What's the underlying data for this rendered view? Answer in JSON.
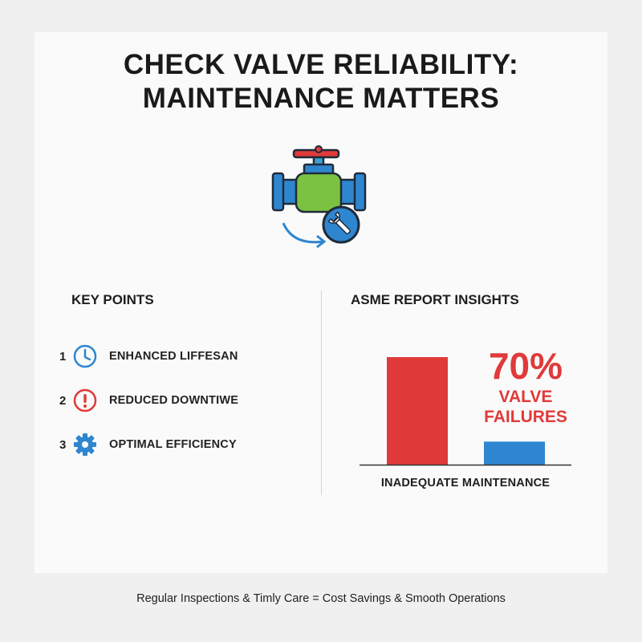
{
  "title": {
    "line1": "CHECK VALVE RELIABILITY:",
    "line2": "MAINTENANCE MATTERS"
  },
  "hero": {
    "icon": "valve-with-wrench-icon"
  },
  "key_points": {
    "heading": "KEY POINTS",
    "items": [
      {
        "number": "1",
        "label": "ENHANCED LIFFESAN",
        "icon": "clock-icon",
        "color": "#2f86d0"
      },
      {
        "number": "2",
        "label": "REDUCED DOWNTIWE",
        "icon": "alert-icon",
        "color": "#e03a3a"
      },
      {
        "number": "3",
        "label": "OPTIMAL EFFICIENCY",
        "icon": "gear-icon",
        "color": "#2f86d0"
      }
    ]
  },
  "asme": {
    "heading": "ASME REPORT INSIGHTS",
    "stat_percent": "70%",
    "stat_label_line1": "VALVE",
    "stat_label_line2": "FAILURES",
    "x_label": "INADEQUATE MAINTENANCE"
  },
  "chart_data": {
    "type": "bar",
    "categories": [
      "",
      ""
    ],
    "values": [
      70,
      15
    ],
    "colors": [
      "#e03a3a",
      "#2f86d0"
    ],
    "ylim": [
      0,
      70
    ],
    "xlabel": "INADEQUATE MAINTENANCE",
    "title": "",
    "ylabel": ""
  },
  "footer": "Regular Inspections & Timly Care = Cost Savings & Smooth Operations",
  "colors": {
    "accent_red": "#e03a3a",
    "accent_blue": "#2f86d0",
    "valve_green": "#7cc242"
  }
}
